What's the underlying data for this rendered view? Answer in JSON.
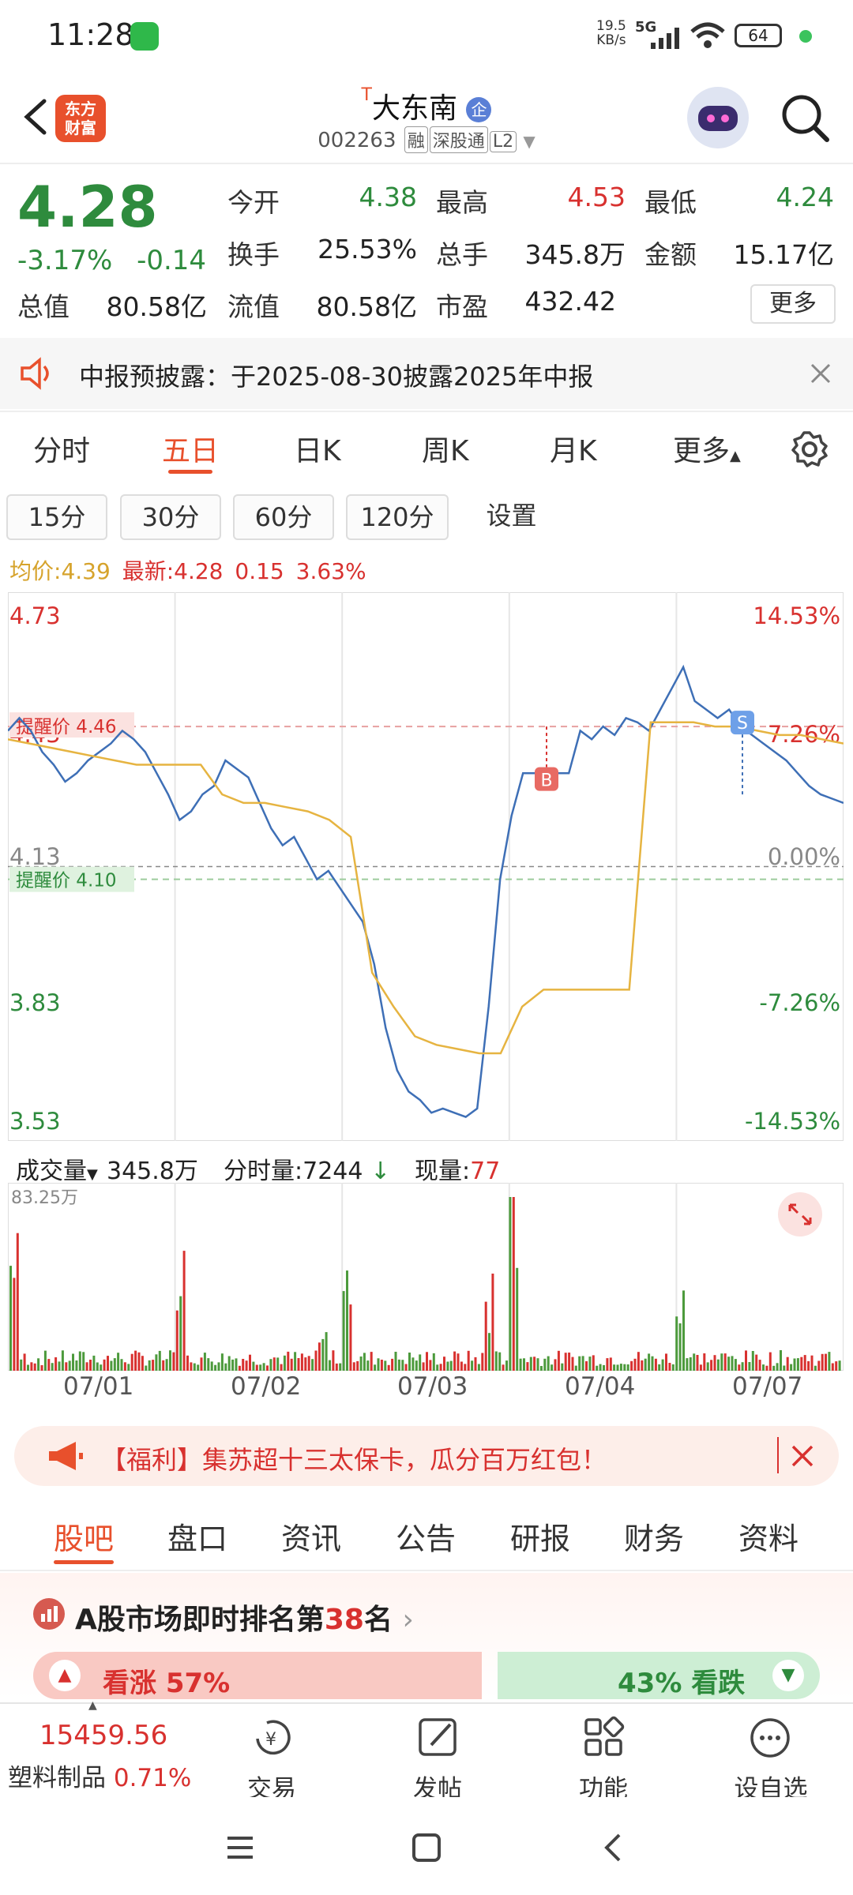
{
  "status_bar": {
    "time": "11:28",
    "net_speed_1": "19.5",
    "net_speed_2": "KB/s",
    "signal": "5G",
    "battery": "64"
  },
  "header": {
    "logo_line1": "东方",
    "logo_line2": "财富",
    "stock_name": "大东南",
    "stock_code": "002263",
    "tags": [
      "融",
      "深股通",
      "L2"
    ]
  },
  "quote": {
    "price": "4.28",
    "change_pct": "-3.17%",
    "change": "-0.14",
    "fields": [
      {
        "label": "今开",
        "value": "4.38",
        "color": "#2e8b3d"
      },
      {
        "label": "最高",
        "value": "4.53",
        "color": "#d8312f"
      },
      {
        "label": "最低",
        "value": "4.24",
        "color": "#2e8b3d"
      },
      {
        "label": "换手",
        "value": "25.53%",
        "color": "#222222"
      },
      {
        "label": "总手",
        "value": "345.8万",
        "color": "#222222"
      },
      {
        "label": "金额",
        "value": "15.17亿",
        "color": "#222222"
      },
      {
        "label": "总值",
        "value": "80.58亿",
        "color": "#222222"
      },
      {
        "label": "流值",
        "value": "80.58亿",
        "color": "#222222"
      },
      {
        "label": "市盈",
        "value": "432.42",
        "color": "#222222"
      }
    ],
    "more_label": "更多"
  },
  "notice": {
    "text": "中报预披露：于2025-08-30披露2025年中报"
  },
  "chart_tabs": [
    "分时",
    "五日",
    "日K",
    "周K",
    "月K",
    "更多"
  ],
  "periods": [
    "15分",
    "30分",
    "60分",
    "120分",
    "设置"
  ],
  "avg_line": {
    "avg_label": "均价:",
    "avg_value": "4.39",
    "latest_label": "最新:",
    "latest_value": "4.28",
    "chg": "0.15",
    "pct": "3.63%"
  },
  "chart_data": {
    "type": "line",
    "title": "",
    "ylim": [
      3.53,
      4.73
    ],
    "y_left_ticks": [
      "4.73",
      "4.43",
      "4.13",
      "3.83",
      "3.53"
    ],
    "y_right_ticks": [
      "14.53%",
      "7.26%",
      "0.00%",
      "-7.26%",
      "-14.53%"
    ],
    "alert_high": "提醒价 4.46",
    "alert_low": "提醒价 4.10",
    "markers": [
      "B",
      "S"
    ],
    "x_labels": [
      "07/01",
      "07/02",
      "07/03",
      "07/04",
      "07/07"
    ],
    "series": [
      {
        "values": [
          4.45,
          4.48,
          4.45,
          4.4,
          4.37,
          4.33,
          4.35,
          4.38,
          4.4,
          4.42,
          4.45,
          4.43,
          4.4,
          4.35,
          4.3,
          4.24,
          4.26,
          4.3,
          4.32,
          4.38,
          4.36,
          4.34,
          4.28,
          4.22,
          4.18,
          4.2,
          4.15,
          4.1,
          4.12,
          4.08,
          4.04,
          4.0,
          3.9,
          3.75,
          3.65,
          3.6,
          3.58,
          3.55,
          3.56,
          3.55,
          3.54,
          3.56,
          3.8,
          4.1,
          4.25,
          4.35,
          4.35,
          4.35,
          4.35,
          4.35,
          4.45,
          4.43,
          4.46,
          4.44,
          4.48,
          4.47,
          4.45,
          4.5,
          4.55,
          4.6,
          4.52,
          4.5,
          4.48,
          4.5,
          4.46,
          4.44,
          4.42,
          4.4,
          4.38,
          4.35,
          4.32,
          4.3,
          4.29,
          4.28
        ]
      },
      {
        "values": [
          4.43,
          4.42,
          4.41,
          4.4,
          4.39,
          4.38,
          4.37,
          4.37,
          4.37,
          4.37,
          4.3,
          4.28,
          4.28,
          4.27,
          4.26,
          4.24,
          4.2,
          3.88,
          3.8,
          3.73,
          3.71,
          3.7,
          3.69,
          3.69,
          3.8,
          3.84,
          3.84,
          3.84,
          3.84,
          3.84,
          4.47,
          4.47,
          4.47,
          4.46,
          4.46,
          4.45,
          4.44,
          4.44,
          4.43,
          4.42
        ]
      }
    ]
  },
  "volume": {
    "label": "成交量",
    "total": "345.8万",
    "minute_label": "分时量:7244",
    "now_label": "现量:",
    "now_value": "77",
    "max_label": "83.25万"
  },
  "banner": {
    "text": "【福利】集苏超十三太保卡，瓜分百万红包！"
  },
  "sub_tabs": [
    "股吧",
    "盘口",
    "资讯",
    "公告",
    "研报",
    "财务",
    "资料"
  ],
  "rank": {
    "prefix": "A股市场即时排名第",
    "number": "38",
    "suffix": "名",
    "up_label": "看涨 57%",
    "down_label": "43% 看跌",
    "up_fraction": 0.57
  },
  "bottom_nav": {
    "index_value": "15459.56",
    "index_name": "塑料制品",
    "index_pct": "0.71%",
    "items": [
      "交易",
      "发帖",
      "功能",
      "设自选"
    ]
  }
}
